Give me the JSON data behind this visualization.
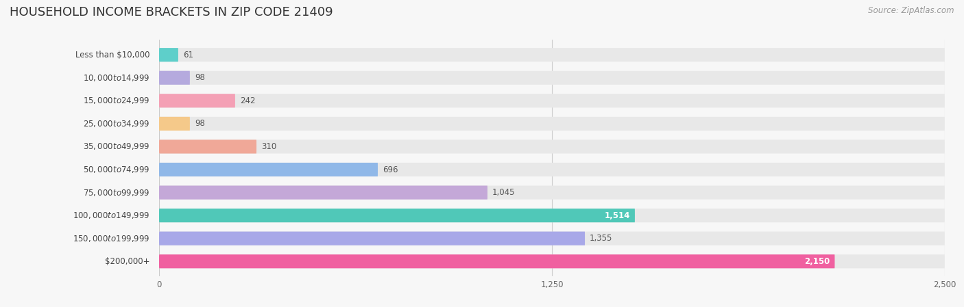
{
  "title": "HOUSEHOLD INCOME BRACKETS IN ZIP CODE 21409",
  "source": "Source: ZipAtlas.com",
  "categories": [
    "Less than $10,000",
    "$10,000 to $14,999",
    "$15,000 to $24,999",
    "$25,000 to $34,999",
    "$35,000 to $49,999",
    "$50,000 to $74,999",
    "$75,000 to $99,999",
    "$100,000 to $149,999",
    "$150,000 to $199,999",
    "$200,000+"
  ],
  "values": [
    61,
    98,
    242,
    98,
    310,
    696,
    1045,
    1514,
    1355,
    2150
  ],
  "bar_colors": [
    "#5ECFCA",
    "#B5AADE",
    "#F4A0B5",
    "#F5C98A",
    "#F0A898",
    "#90B8E8",
    "#C4A8D8",
    "#50C8B8",
    "#A8A8E8",
    "#F060A0"
  ],
  "xlim": [
    0,
    2500
  ],
  "xticks": [
    0,
    1250,
    2500
  ],
  "background_color": "#f7f7f7",
  "bar_bg_color": "#e8e8e8",
  "title_fontsize": 13,
  "label_fontsize": 8.5,
  "value_fontsize": 8.5,
  "source_fontsize": 8.5,
  "value_inside_threshold": 1400
}
